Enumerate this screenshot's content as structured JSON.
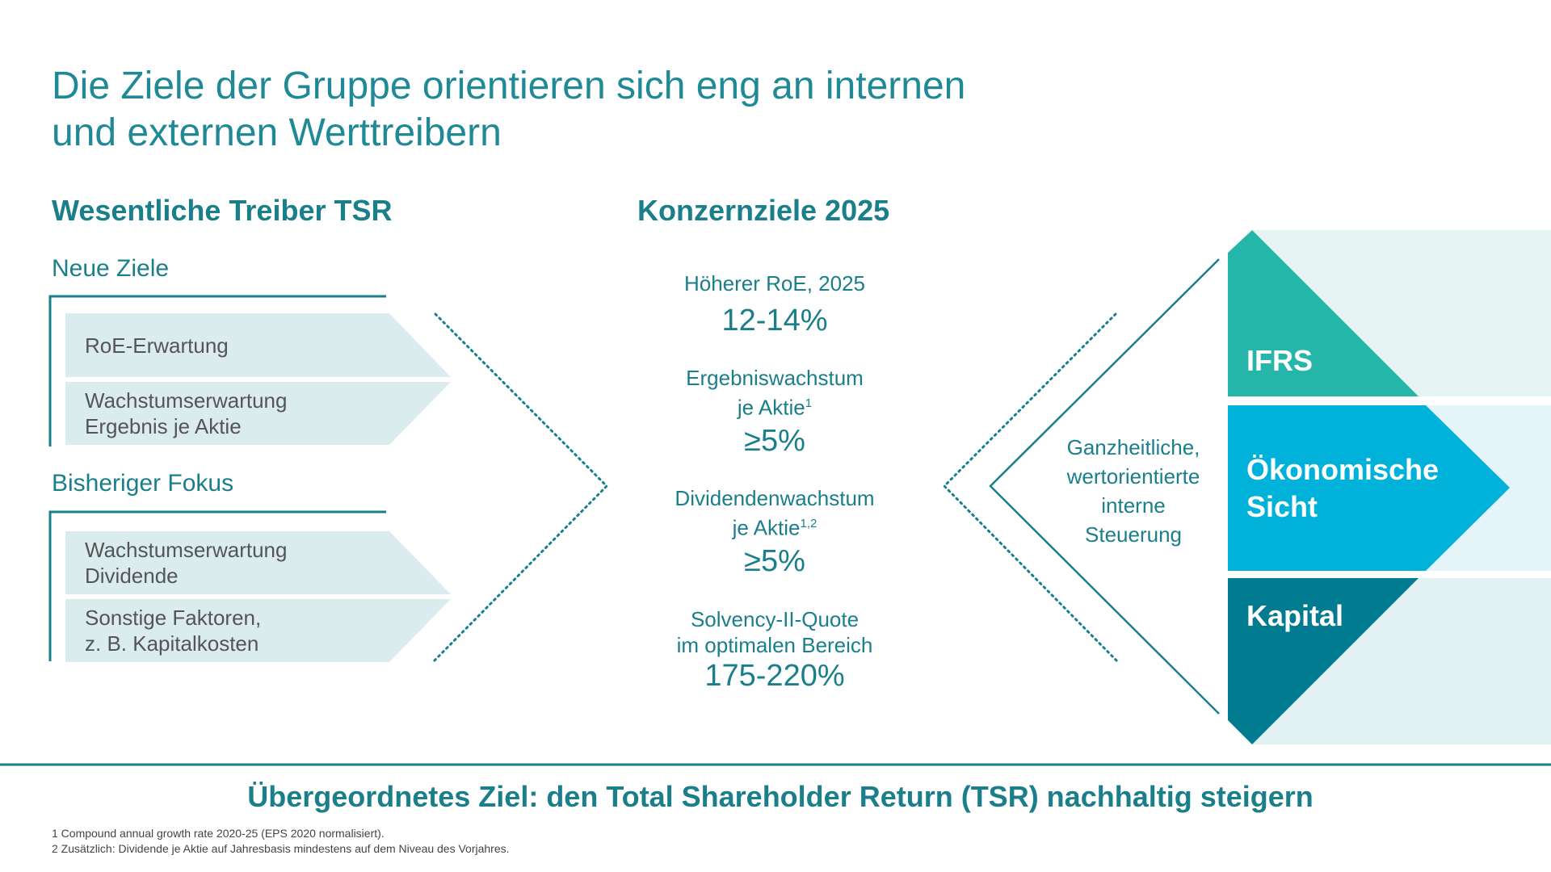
{
  "title": {
    "line1": "Die Ziele der Gruppe orientieren sich eng an internen",
    "line2": "und externen Werttreibern"
  },
  "left": {
    "heading": "Wesentliche Treiber TSR",
    "groups": [
      {
        "label": "Neue Ziele",
        "items": [
          [
            "RoE-Erwartung"
          ],
          [
            "Wachstumserwartung",
            "Ergebnis je Aktie"
          ]
        ]
      },
      {
        "label": "Bisheriger Fokus",
        "items": [
          [
            "Wachstumserwartung",
            "Dividende"
          ],
          [
            "Sonstige Faktoren,",
            "z. B. Kapitalkosten"
          ]
        ]
      }
    ]
  },
  "center": {
    "heading": "Konzernziele 2025",
    "targets": [
      {
        "label1": "Höherer RoE, 2025",
        "value": "12-14%"
      },
      {
        "label1": "Ergebniswachstum",
        "label2": "je Aktie",
        "sup": "1",
        "value": "≥5%"
      },
      {
        "label1": "Dividendenwachstum",
        "label2": "je Aktie",
        "sup": "1,2",
        "value": "≥5%"
      },
      {
        "label1": "Solvency-II-Quote",
        "label2": "im optimalen Bereich",
        "value": "175-220%"
      }
    ]
  },
  "right": {
    "steering": [
      "Ganzheitliche,",
      "wertorientierte",
      "interne",
      "Steuerung"
    ],
    "segments": [
      {
        "label": "IFRS",
        "color": "#26b5a9"
      },
      {
        "label1": "Ökonomische",
        "label2": "Sicht",
        "color": "#00b2d9"
      },
      {
        "label": "Kapital",
        "color": "#007b8f"
      }
    ]
  },
  "bottom": {
    "goal": "Übergeordnetes Ziel: den Total Shareholder Return (TSR) nachhaltig steigern"
  },
  "footnotes": [
    "1 Compound annual growth rate 2020-25 (EPS 2020 normalisiert).",
    "2 Zusätzlich: Dividende je Aktie auf Jahresbasis mindestens auf dem Niveau des Vorjahres."
  ],
  "colors": {
    "teal": "#1a7f8a",
    "box": "#dbecef"
  }
}
